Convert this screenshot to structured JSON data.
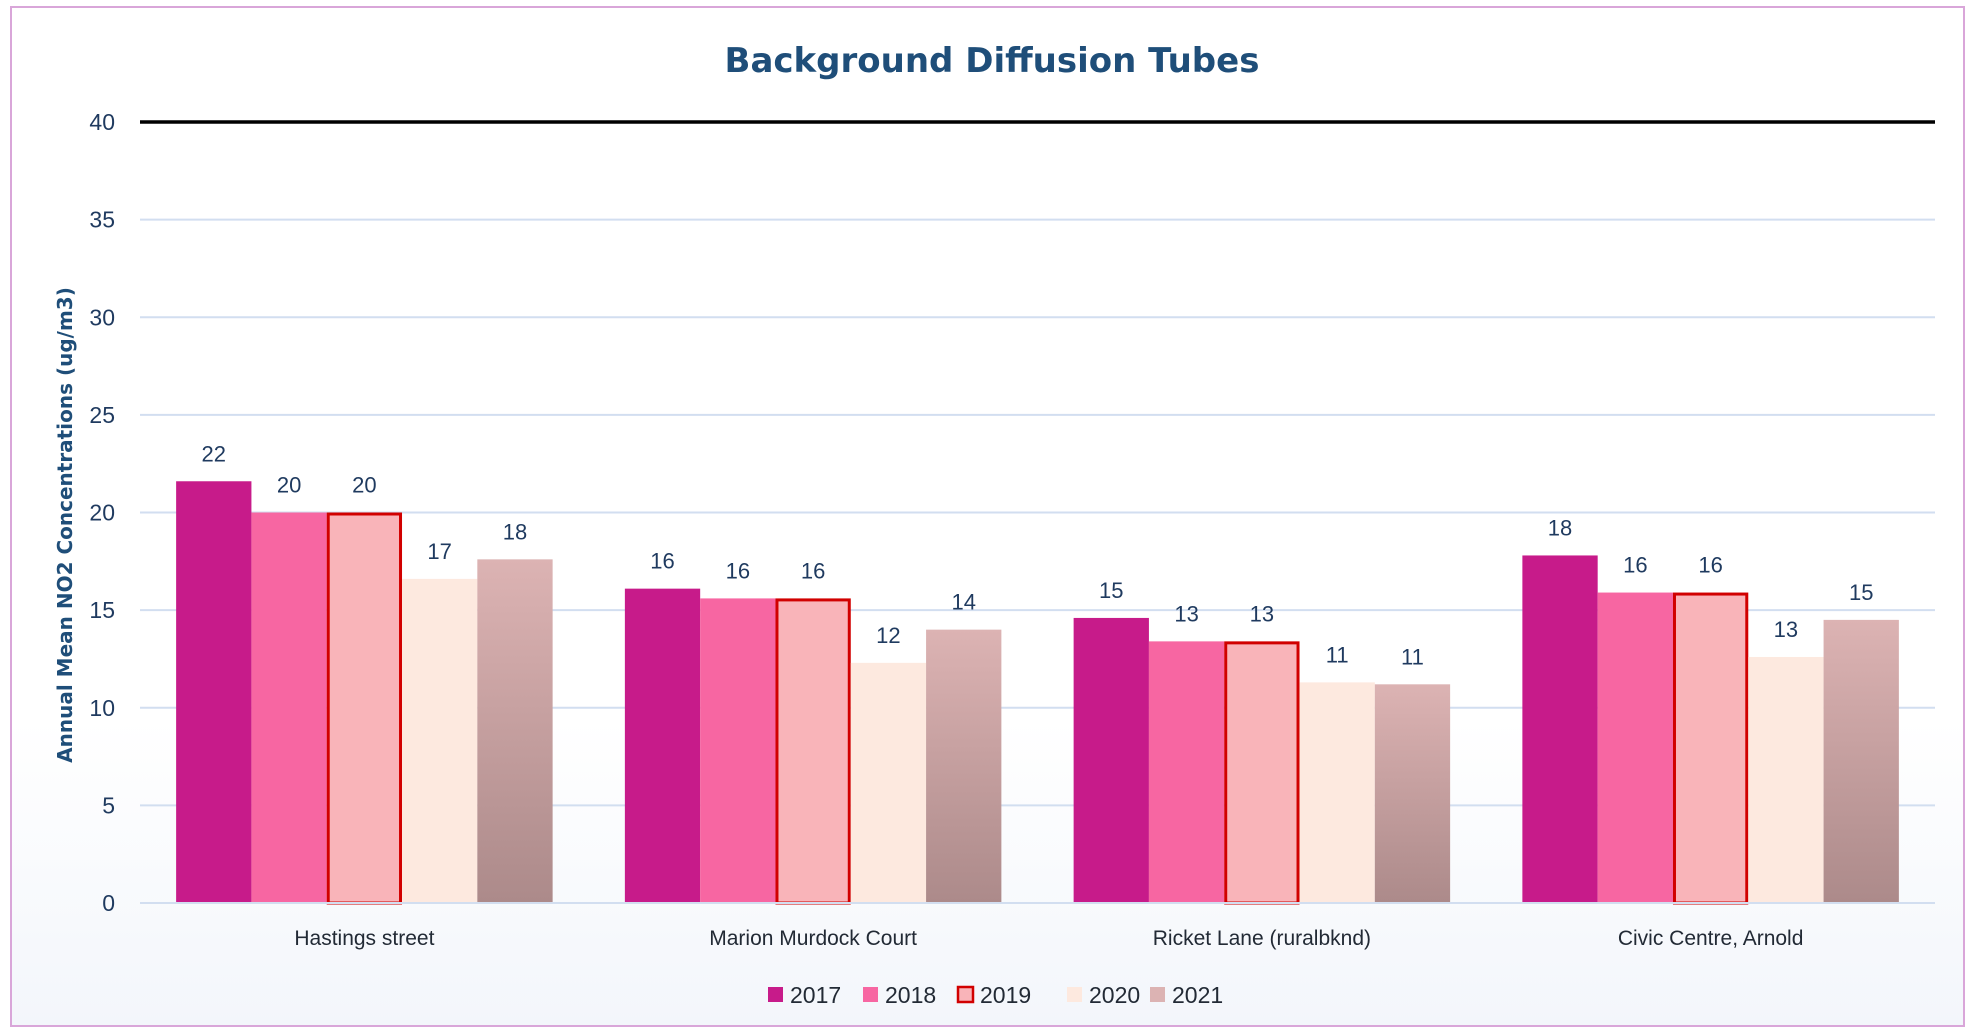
{
  "chart_data": {
    "type": "bar",
    "title": "Background Diffusion Tubes",
    "ylabel": "Annual Mean NO2 Concentrations (ug/m3)",
    "xlabel": "",
    "ylim": [
      0,
      40
    ],
    "yticks": [
      0,
      5,
      10,
      15,
      20,
      25,
      30,
      35,
      40
    ],
    "ytick_labels": [
      "0",
      "5",
      "10",
      "15",
      "20",
      "25",
      "30",
      "35",
      "40"
    ],
    "categories": [
      "Hastings street",
      "Marion Murdock Court",
      "Ricket Lane  (ruralbknd)",
      "Civic Centre, Arnold"
    ],
    "series": [
      {
        "name": "2017",
        "values": [
          21.6,
          16.1,
          14.6,
          17.8
        ],
        "labels": [
          "22",
          "16",
          "15",
          "18"
        ],
        "color": "#c71b8a"
      },
      {
        "name": "2018",
        "values": [
          20.0,
          15.6,
          13.4,
          15.9
        ],
        "labels": [
          "20",
          "16",
          "13",
          "16"
        ],
        "color": "#f766a2"
      },
      {
        "name": "2019",
        "values": [
          20.0,
          15.6,
          13.4,
          15.9
        ],
        "labels": [
          "20",
          "16",
          "13",
          "16"
        ],
        "color": "#f9b4b9",
        "border": "#d10000"
      },
      {
        "name": "2020",
        "values": [
          16.6,
          12.3,
          11.3,
          12.6
        ],
        "labels": [
          "17",
          "12",
          "11",
          "13"
        ],
        "color": "#fde9df"
      },
      {
        "name": "2021",
        "values": [
          17.6,
          14.0,
          11.2,
          14.5
        ],
        "labels": [
          "18",
          "14",
          "11",
          "15"
        ],
        "color": "#dcb3b3",
        "gradient_bottom": "#ac8a8a"
      }
    ],
    "reference_line": {
      "value": 40,
      "color": "#000000"
    },
    "grid": true,
    "legend_position": "bottom"
  }
}
